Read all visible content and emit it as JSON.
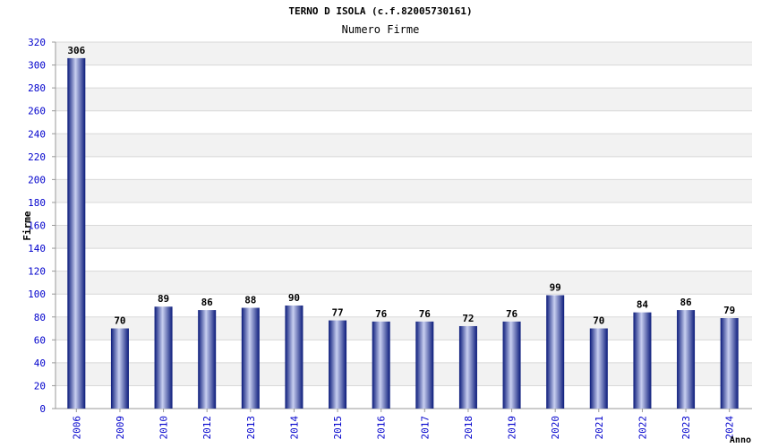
{
  "chart_data": {
    "type": "bar",
    "title": "TERNO D ISOLA (c.f.82005730161)",
    "subtitle": "Numero Firme",
    "xlabel": "Anno",
    "ylabel": "Firme",
    "ylim": [
      0,
      320
    ],
    "ytick_step": 20,
    "grid": true,
    "categories": [
      "2006",
      "2009",
      "2010",
      "2012",
      "2013",
      "2014",
      "2015",
      "2016",
      "2017",
      "2018",
      "2019",
      "2020",
      "2021",
      "2022",
      "2023",
      "2024"
    ],
    "values": [
      306,
      70,
      89,
      86,
      88,
      90,
      77,
      76,
      76,
      72,
      76,
      99,
      70,
      84,
      86,
      79
    ],
    "colors": {
      "bar_dark": "#0a1a7a",
      "bar_light": "#c8cff0",
      "tick_label": "#0000cc",
      "band": "#f2f2f2",
      "grid": "#d8d8d8"
    }
  }
}
